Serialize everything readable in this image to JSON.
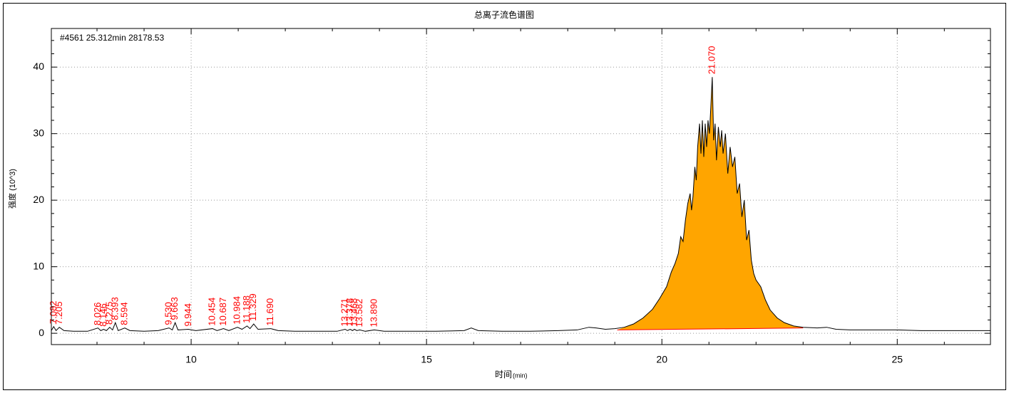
{
  "chart_data": {
    "type": "chromatogram",
    "title": "总离子流色谱图",
    "annotation": "#4561  25.312min  28178.53",
    "ylabel": "强度 (10^3)",
    "xlabel": "时间",
    "xlabel_unit": "(min)",
    "xlim": [
      7.03,
      26.98
    ],
    "ylim": [
      -1.7,
      45.8
    ],
    "xticks": [
      10,
      15,
      20,
      25
    ],
    "yticks": [
      0,
      10,
      20,
      30,
      40
    ],
    "xminorticks": [
      8,
      9,
      11,
      12,
      13,
      14,
      16,
      17,
      18,
      19,
      21,
      22,
      23,
      24,
      26
    ],
    "yminorticks": [
      2,
      4,
      6,
      8,
      12,
      14,
      16,
      18,
      22,
      24,
      26,
      28,
      32,
      34,
      36,
      38,
      42,
      44
    ],
    "grid": true,
    "color": "#000000",
    "label_color": "#ff0000",
    "x": [
      7.03,
      7.08,
      7.13,
      7.2,
      7.3,
      7.5,
      7.8,
      8.02,
      8.08,
      8.14,
      8.2,
      8.27,
      8.33,
      8.39,
      8.45,
      8.59,
      8.7,
      9.0,
      9.3,
      9.53,
      9.6,
      9.66,
      9.72,
      9.94,
      10.1,
      10.454,
      10.55,
      10.687,
      10.8,
      10.984,
      11.08,
      11.188,
      11.25,
      11.329,
      11.42,
      11.69,
      11.85,
      12.2,
      12.7,
      13.1,
      13.271,
      13.32,
      13.378,
      13.43,
      13.468,
      13.52,
      13.582,
      13.7,
      13.89,
      14.1,
      14.6,
      15.2,
      15.8,
      15.95,
      16.1,
      16.6,
      17.2,
      17.8,
      18.2,
      18.45,
      18.6,
      18.8,
      19.0,
      19.2,
      19.4,
      19.6,
      19.8,
      19.95,
      20.1,
      20.2,
      20.28,
      20.35,
      20.4,
      20.45,
      20.5,
      20.55,
      20.6,
      20.63,
      20.66,
      20.7,
      20.73,
      20.76,
      20.8,
      20.83,
      20.86,
      20.89,
      20.92,
      20.95,
      20.98,
      21.01,
      21.04,
      21.07,
      21.1,
      21.13,
      21.16,
      21.2,
      21.24,
      21.27,
      21.3,
      21.35,
      21.4,
      21.45,
      21.5,
      21.55,
      21.6,
      21.65,
      21.7,
      21.75,
      21.8,
      21.85,
      21.9,
      21.95,
      22.0,
      22.1,
      22.2,
      22.3,
      22.45,
      22.6,
      22.8,
      23.0,
      23.3,
      23.5,
      23.7,
      24.0,
      24.5,
      25.0,
      25.5,
      26.0,
      26.5,
      26.98
    ],
    "values": [
      0.4,
      1.0,
      0.4,
      0.9,
      0.4,
      0.3,
      0.3,
      0.8,
      0.4,
      0.6,
      0.4,
      0.9,
      0.5,
      1.6,
      0.4,
      0.8,
      0.4,
      0.3,
      0.4,
      0.8,
      0.5,
      1.6,
      0.5,
      0.6,
      0.4,
      0.7,
      0.4,
      0.7,
      0.4,
      0.9,
      0.6,
      1.1,
      0.7,
      1.4,
      0.6,
      0.7,
      0.4,
      0.3,
      0.3,
      0.3,
      0.6,
      0.4,
      0.6,
      0.4,
      0.6,
      0.4,
      0.5,
      0.3,
      0.5,
      0.3,
      0.3,
      0.3,
      0.4,
      0.8,
      0.4,
      0.3,
      0.3,
      0.4,
      0.5,
      0.9,
      0.8,
      0.6,
      0.7,
      0.9,
      1.4,
      2.3,
      3.6,
      5.2,
      7.0,
      9.2,
      10.5,
      12.0,
      14.5,
      13.8,
      17.0,
      19.5,
      21.0,
      18.5,
      20.5,
      25.0,
      23.0,
      28.0,
      31.5,
      27.0,
      32.0,
      26.5,
      31.5,
      28.0,
      32.0,
      30.0,
      34.0,
      38.5,
      29.0,
      31.5,
      26.0,
      31.0,
      28.0,
      30.5,
      27.0,
      30.0,
      24.0,
      28.0,
      25.0,
      26.5,
      21.0,
      22.5,
      17.5,
      20.0,
      14.0,
      15.5,
      11.0,
      9.0,
      8.0,
      7.0,
      5.0,
      3.5,
      2.3,
      1.6,
      1.1,
      0.9,
      0.8,
      0.9,
      0.6,
      0.5,
      0.5,
      0.5,
      0.4,
      0.4,
      0.4,
      0.4
    ],
    "integration": {
      "start": 19.05,
      "end": 23.0,
      "baseline": [
        0.5,
        0.8
      ],
      "fill": "#ffa500",
      "line": "#ff0000"
    },
    "peaks": [
      7.082,
      7.205,
      8.026,
      8.146,
      8.275,
      8.393,
      8.594,
      {
        "value": 9.53,
        "label": "9.530"
      },
      9.663,
      9.944,
      10.454,
      10.687,
      10.984,
      11.188,
      11.329,
      {
        "value": 11.69,
        "label": "11.690"
      },
      13.271,
      13.378,
      13.468,
      13.582,
      {
        "value": 13.89,
        "label": "13.890"
      },
      {
        "value": 21.07,
        "label": "21.070"
      }
    ]
  }
}
